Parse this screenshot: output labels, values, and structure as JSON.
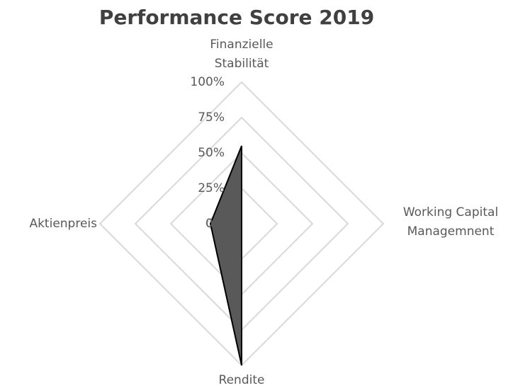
{
  "chart_data": {
    "type": "radar",
    "title": "Performance Score 2019",
    "categories": [
      "Finanzielle Stabilität",
      "Working Capital Managemnent",
      "Rendite",
      "Aktienpreis"
    ],
    "values": [
      55,
      0,
      100,
      22
    ],
    "color": "#595959",
    "ylim": [
      0,
      100
    ],
    "yticks": [
      {
        "value": 0,
        "label": "0%"
      },
      {
        "value": 25,
        "label": "25%"
      },
      {
        "value": 50,
        "label": "50%"
      },
      {
        "value": 75,
        "label": "75%"
      },
      {
        "value": 100,
        "label": "100%"
      }
    ],
    "grid": true
  }
}
